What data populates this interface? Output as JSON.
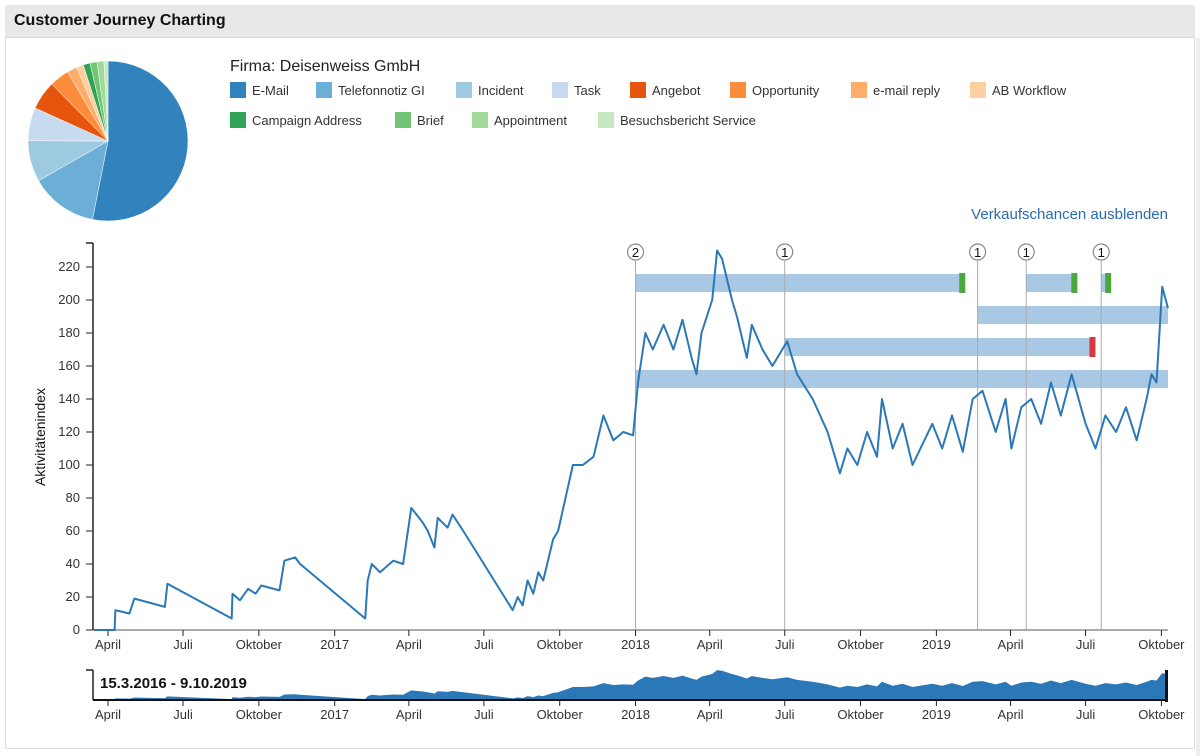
{
  "header": {
    "title": "Customer Journey Charting"
  },
  "company_label": "Firma: Deisenweiss GmbH",
  "toggle_opportunities_label": "Verkaufschancen ausblenden",
  "range_label": "15.3.2016 - 9.10.2019",
  "chart_data": [
    {
      "type": "pie",
      "slices": [
        {
          "label": "E-Mail",
          "value": 53,
          "color": "#3182bd"
        },
        {
          "label": "Telefonnotiz GI",
          "value": 13.6,
          "color": "#6baed6"
        },
        {
          "label": "Incident",
          "value": 8.3,
          "color": "#9ecae1"
        },
        {
          "label": "Task",
          "value": 6.7,
          "color": "#c6dbef"
        },
        {
          "label": "Angebot",
          "value": 5.8,
          "color": "#e6550d"
        },
        {
          "label": "Opportunity",
          "value": 4,
          "color": "#fd8d3c"
        },
        {
          "label": "e-mail reply",
          "value": 2,
          "color": "#fdae6b"
        },
        {
          "label": "AB Workflow",
          "value": 1.4,
          "color": "#fdd0a2"
        },
        {
          "label": "Campaign Address",
          "value": 1.4,
          "color": "#31a354"
        },
        {
          "label": "Brief",
          "value": 1.4,
          "color": "#74c476"
        },
        {
          "label": "Appointment",
          "value": 1.4,
          "color": "#a1d99b"
        },
        {
          "label": "Besuchsbericht Service",
          "value": 0.8,
          "color": "#c7e9c0"
        }
      ]
    },
    {
      "type": "line",
      "ylabel": "Aktivitätenindex",
      "xlim": [
        "2016-03-15",
        "2019-10-09"
      ],
      "ylim": [
        0,
        235
      ],
      "yticks": [
        0,
        20,
        40,
        60,
        80,
        100,
        120,
        140,
        160,
        180,
        200,
        220
      ],
      "xticks": [
        {
          "date": "2016-04-01",
          "label": "April"
        },
        {
          "date": "2016-07-01",
          "label": "Juli"
        },
        {
          "date": "2016-10-01",
          "label": "Oktober"
        },
        {
          "date": "2017-01-01",
          "label": "2017"
        },
        {
          "date": "2017-04-01",
          "label": "April"
        },
        {
          "date": "2017-07-01",
          "label": "Juli"
        },
        {
          "date": "2017-10-01",
          "label": "Oktober"
        },
        {
          "date": "2018-01-01",
          "label": "2018"
        },
        {
          "date": "2018-04-01",
          "label": "April"
        },
        {
          "date": "2018-07-01",
          "label": "Juli"
        },
        {
          "date": "2018-10-01",
          "label": "Oktober"
        },
        {
          "date": "2019-01-01",
          "label": "2019"
        },
        {
          "date": "2019-04-01",
          "label": "April"
        },
        {
          "date": "2019-07-01",
          "label": "Juli"
        },
        {
          "date": "2019-10-01",
          "label": "Oktober"
        }
      ],
      "line_color": "#2b78b8",
      "series": [
        [
          "2016-03-15",
          0
        ],
        [
          "2016-04-09",
          0
        ],
        [
          "2016-04-10",
          12
        ],
        [
          "2016-04-27",
          10
        ],
        [
          "2016-05-03",
          19
        ],
        [
          "2016-06-09",
          14
        ],
        [
          "2016-06-12",
          28
        ],
        [
          "2016-08-29",
          7
        ],
        [
          "2016-08-30",
          22
        ],
        [
          "2016-09-08",
          18
        ],
        [
          "2016-09-18",
          25
        ],
        [
          "2016-09-27",
          22
        ],
        [
          "2016-10-04",
          27
        ],
        [
          "2016-10-26",
          24
        ],
        [
          "2016-11-01",
          42
        ],
        [
          "2016-11-14",
          44
        ],
        [
          "2016-11-20",
          40
        ],
        [
          "2017-02-07",
          7
        ],
        [
          "2017-02-10",
          30
        ],
        [
          "2017-02-15",
          40
        ],
        [
          "2017-02-25",
          35
        ],
        [
          "2017-03-13",
          42
        ],
        [
          "2017-03-25",
          40
        ],
        [
          "2017-04-04",
          74
        ],
        [
          "2017-04-18",
          65
        ],
        [
          "2017-04-24",
          60
        ],
        [
          "2017-05-02",
          50
        ],
        [
          "2017-05-06",
          68
        ],
        [
          "2017-05-18",
          62
        ],
        [
          "2017-05-24",
          70
        ],
        [
          "2017-06-06",
          60
        ],
        [
          "2017-08-05",
          12
        ],
        [
          "2017-08-11",
          20
        ],
        [
          "2017-08-17",
          15
        ],
        [
          "2017-08-23",
          30
        ],
        [
          "2017-08-30",
          22
        ],
        [
          "2017-09-05",
          35
        ],
        [
          "2017-09-11",
          30
        ],
        [
          "2017-09-23",
          55
        ],
        [
          "2017-09-29",
          60
        ],
        [
          "2017-10-17",
          100
        ],
        [
          "2017-10-29",
          100
        ],
        [
          "2017-11-11",
          105
        ],
        [
          "2017-11-23",
          130
        ],
        [
          "2017-12-05",
          115
        ],
        [
          "2017-12-17",
          120
        ],
        [
          "2017-12-29",
          118
        ],
        [
          "2018-01-04",
          150
        ],
        [
          "2018-01-13",
          180
        ],
        [
          "2018-01-22",
          170
        ],
        [
          "2018-02-04",
          185
        ],
        [
          "2018-02-16",
          170
        ],
        [
          "2018-02-27",
          188
        ],
        [
          "2018-03-10",
          165
        ],
        [
          "2018-03-16",
          155
        ],
        [
          "2018-03-22",
          180
        ],
        [
          "2018-04-04",
          200
        ],
        [
          "2018-04-10",
          230
        ],
        [
          "2018-04-16",
          225
        ],
        [
          "2018-04-28",
          200
        ],
        [
          "2018-05-04",
          190
        ],
        [
          "2018-05-16",
          165
        ],
        [
          "2018-05-22",
          185
        ],
        [
          "2018-06-04",
          170
        ],
        [
          "2018-06-16",
          160
        ],
        [
          "2018-07-04",
          175
        ],
        [
          "2018-07-16",
          155
        ],
        [
          "2018-08-04",
          140
        ],
        [
          "2018-08-22",
          120
        ],
        [
          "2018-09-06",
          95
        ],
        [
          "2018-09-15",
          110
        ],
        [
          "2018-09-27",
          100
        ],
        [
          "2018-10-09",
          120
        ],
        [
          "2018-10-21",
          105
        ],
        [
          "2018-10-27",
          140
        ],
        [
          "2018-11-09",
          110
        ],
        [
          "2018-11-21",
          125
        ],
        [
          "2018-12-03",
          100
        ],
        [
          "2018-12-27",
          125
        ],
        [
          "2019-01-08",
          110
        ],
        [
          "2019-01-20",
          130
        ],
        [
          "2019-02-02",
          108
        ],
        [
          "2019-02-14",
          140
        ],
        [
          "2019-02-26",
          145
        ],
        [
          "2019-03-14",
          120
        ],
        [
          "2019-03-26",
          140
        ],
        [
          "2019-04-02",
          110
        ],
        [
          "2019-04-14",
          135
        ],
        [
          "2019-04-26",
          140
        ],
        [
          "2019-05-08",
          125
        ],
        [
          "2019-05-20",
          150
        ],
        [
          "2019-06-01",
          130
        ],
        [
          "2019-06-14",
          155
        ],
        [
          "2019-07-01",
          125
        ],
        [
          "2019-07-13",
          110
        ],
        [
          "2019-07-25",
          130
        ],
        [
          "2019-08-07",
          120
        ],
        [
          "2019-08-19",
          135
        ],
        [
          "2019-09-01",
          115
        ],
        [
          "2019-09-13",
          140
        ],
        [
          "2019-09-19",
          155
        ],
        [
          "2019-09-25",
          150
        ],
        [
          "2019-10-02",
          208
        ],
        [
          "2019-10-09",
          195
        ]
      ],
      "markers": [
        {
          "date": "2018-01-01",
          "count": "2"
        },
        {
          "date": "2018-07-01",
          "count": "1"
        },
        {
          "date": "2019-02-20",
          "count": "1"
        },
        {
          "date": "2019-04-20",
          "count": "1"
        },
        {
          "date": "2019-07-20",
          "count": "1"
        }
      ],
      "opportunities": [
        {
          "start": "2018-01-01",
          "end": "2019-02-05",
          "lane": 0,
          "status_color": "#4aa83c"
        },
        {
          "start": "2019-04-20",
          "end": "2019-06-21",
          "lane": 0,
          "status_color": "#4aa83c"
        },
        {
          "start": "2019-07-20",
          "end": "2019-08-01",
          "lane": 0,
          "status_color": "#4aa83c"
        },
        {
          "start": "2019-02-20",
          "end": "2019-10-09",
          "lane": 1,
          "status_color": null
        },
        {
          "start": "2018-07-01",
          "end": "2019-07-13",
          "lane": 2,
          "status_color": "#d9363e"
        },
        {
          "start": "2018-01-01",
          "end": "2019-10-09",
          "lane": 3,
          "status_color": null
        }
      ],
      "bar_color": "#a8c8e4"
    }
  ]
}
